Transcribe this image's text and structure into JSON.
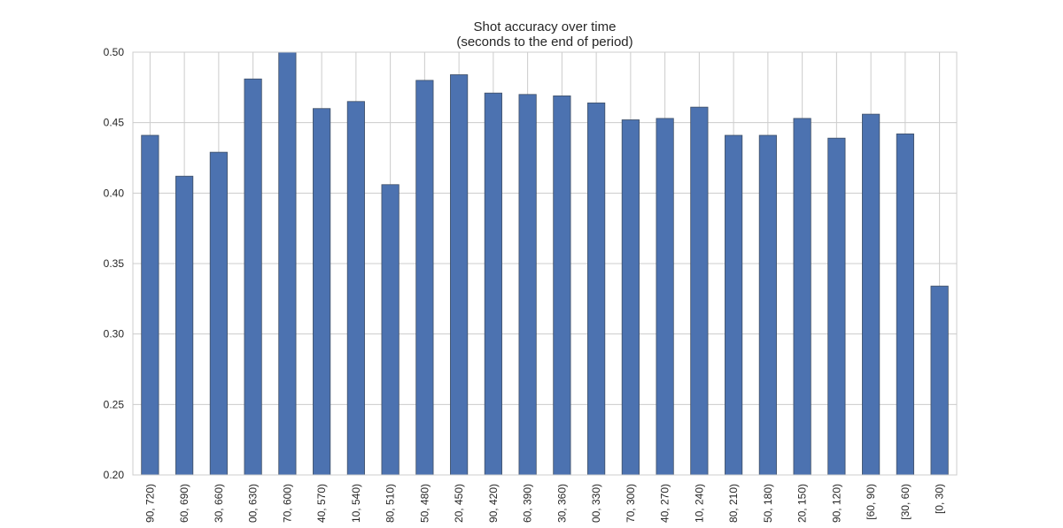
{
  "chart_data": {
    "type": "bar",
    "title_line1": "Shot accuracy over time",
    "title_line2": "(seconds to the end of period)",
    "xlabel": "",
    "ylabel": "",
    "ylim": [
      0.2,
      0.5
    ],
    "yticks": [
      0.2,
      0.25,
      0.3,
      0.35,
      0.4,
      0.45,
      0.5
    ],
    "ytick_labels": [
      "0.20",
      "0.25",
      "0.30",
      "0.35",
      "0.40",
      "0.45",
      "0.50"
    ],
    "grid": true,
    "categories": [
      "90, 720)",
      "60, 690)",
      "30, 660)",
      "00, 630)",
      "70, 600)",
      "40, 570)",
      "10, 540)",
      "80, 510)",
      "50, 480)",
      "20, 450)",
      "90, 420)",
      "60, 390)",
      "30, 360)",
      "00, 330)",
      "70, 300)",
      "40, 270)",
      "10, 240)",
      "80, 210)",
      "50, 180)",
      "20, 150)",
      "90, 120)",
      "[60, 90)",
      "[30, 60)",
      "[0, 30)"
    ],
    "values": [
      0.441,
      0.412,
      0.429,
      0.481,
      0.5,
      0.46,
      0.465,
      0.406,
      0.48,
      0.484,
      0.471,
      0.47,
      0.469,
      0.464,
      0.452,
      0.453,
      0.461,
      0.441,
      0.441,
      0.453,
      0.439,
      0.456,
      0.442,
      0.334
    ],
    "colors": {
      "bar": "#4c72b0",
      "bar_edge": "#3f4f66",
      "grid": "#cccccc",
      "frame": "#cccccc"
    }
  }
}
